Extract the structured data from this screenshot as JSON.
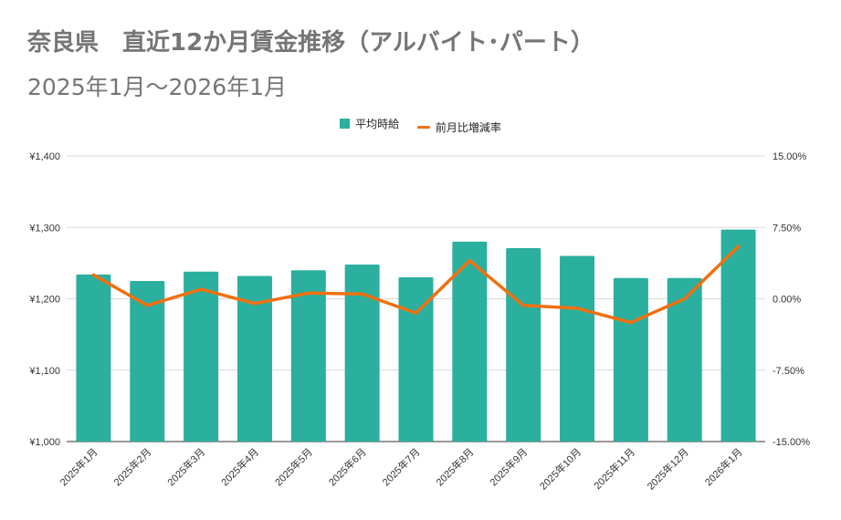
{
  "title": "奈良県　直近12か月賃金推移（アルバイト･パート）",
  "subtitle": "2025年1月～2026年1月",
  "legend": {
    "bar_label": "平均時給",
    "line_label": "前月比増減率"
  },
  "colors": {
    "bar": "#2BAF9E",
    "line": "#F1700F",
    "grid": "#D9D9D9"
  },
  "chart_data": {
    "type": "bar",
    "categories": [
      "2025年1月",
      "2025年2月",
      "2025年3月",
      "2025年4月",
      "2025年5月",
      "2025年6月",
      "2025年7月",
      "2025年8月",
      "2025年9月",
      "2025年10月",
      "2025年11月",
      "2025年12月",
      "2026年1月"
    ],
    "series": [
      {
        "name": "平均時給",
        "type": "bar",
        "axis": "left",
        "values": [
          1234,
          1225,
          1238,
          1232,
          1240,
          1248,
          1230,
          1280,
          1271,
          1260,
          1229,
          1229,
          1297
        ]
      },
      {
        "name": "前月比増減率",
        "type": "line",
        "axis": "right",
        "values": [
          2.5,
          -0.7,
          1.0,
          -0.5,
          0.6,
          0.5,
          -1.5,
          4.0,
          -0.7,
          -1.0,
          -2.5,
          0.0,
          5.5
        ]
      }
    ],
    "y_left": {
      "min": 1000,
      "max": 1400,
      "ticks": [
        "¥1,000",
        "¥1,100",
        "¥1,200",
        "¥1,300",
        "¥1,400"
      ]
    },
    "y_right": {
      "min": -15,
      "max": 15,
      "ticks": [
        "-15.00%",
        "-7.50%",
        "0.00%",
        "7.50%",
        "15.00%"
      ]
    },
    "grid": true,
    "legend_position": "top-center"
  }
}
